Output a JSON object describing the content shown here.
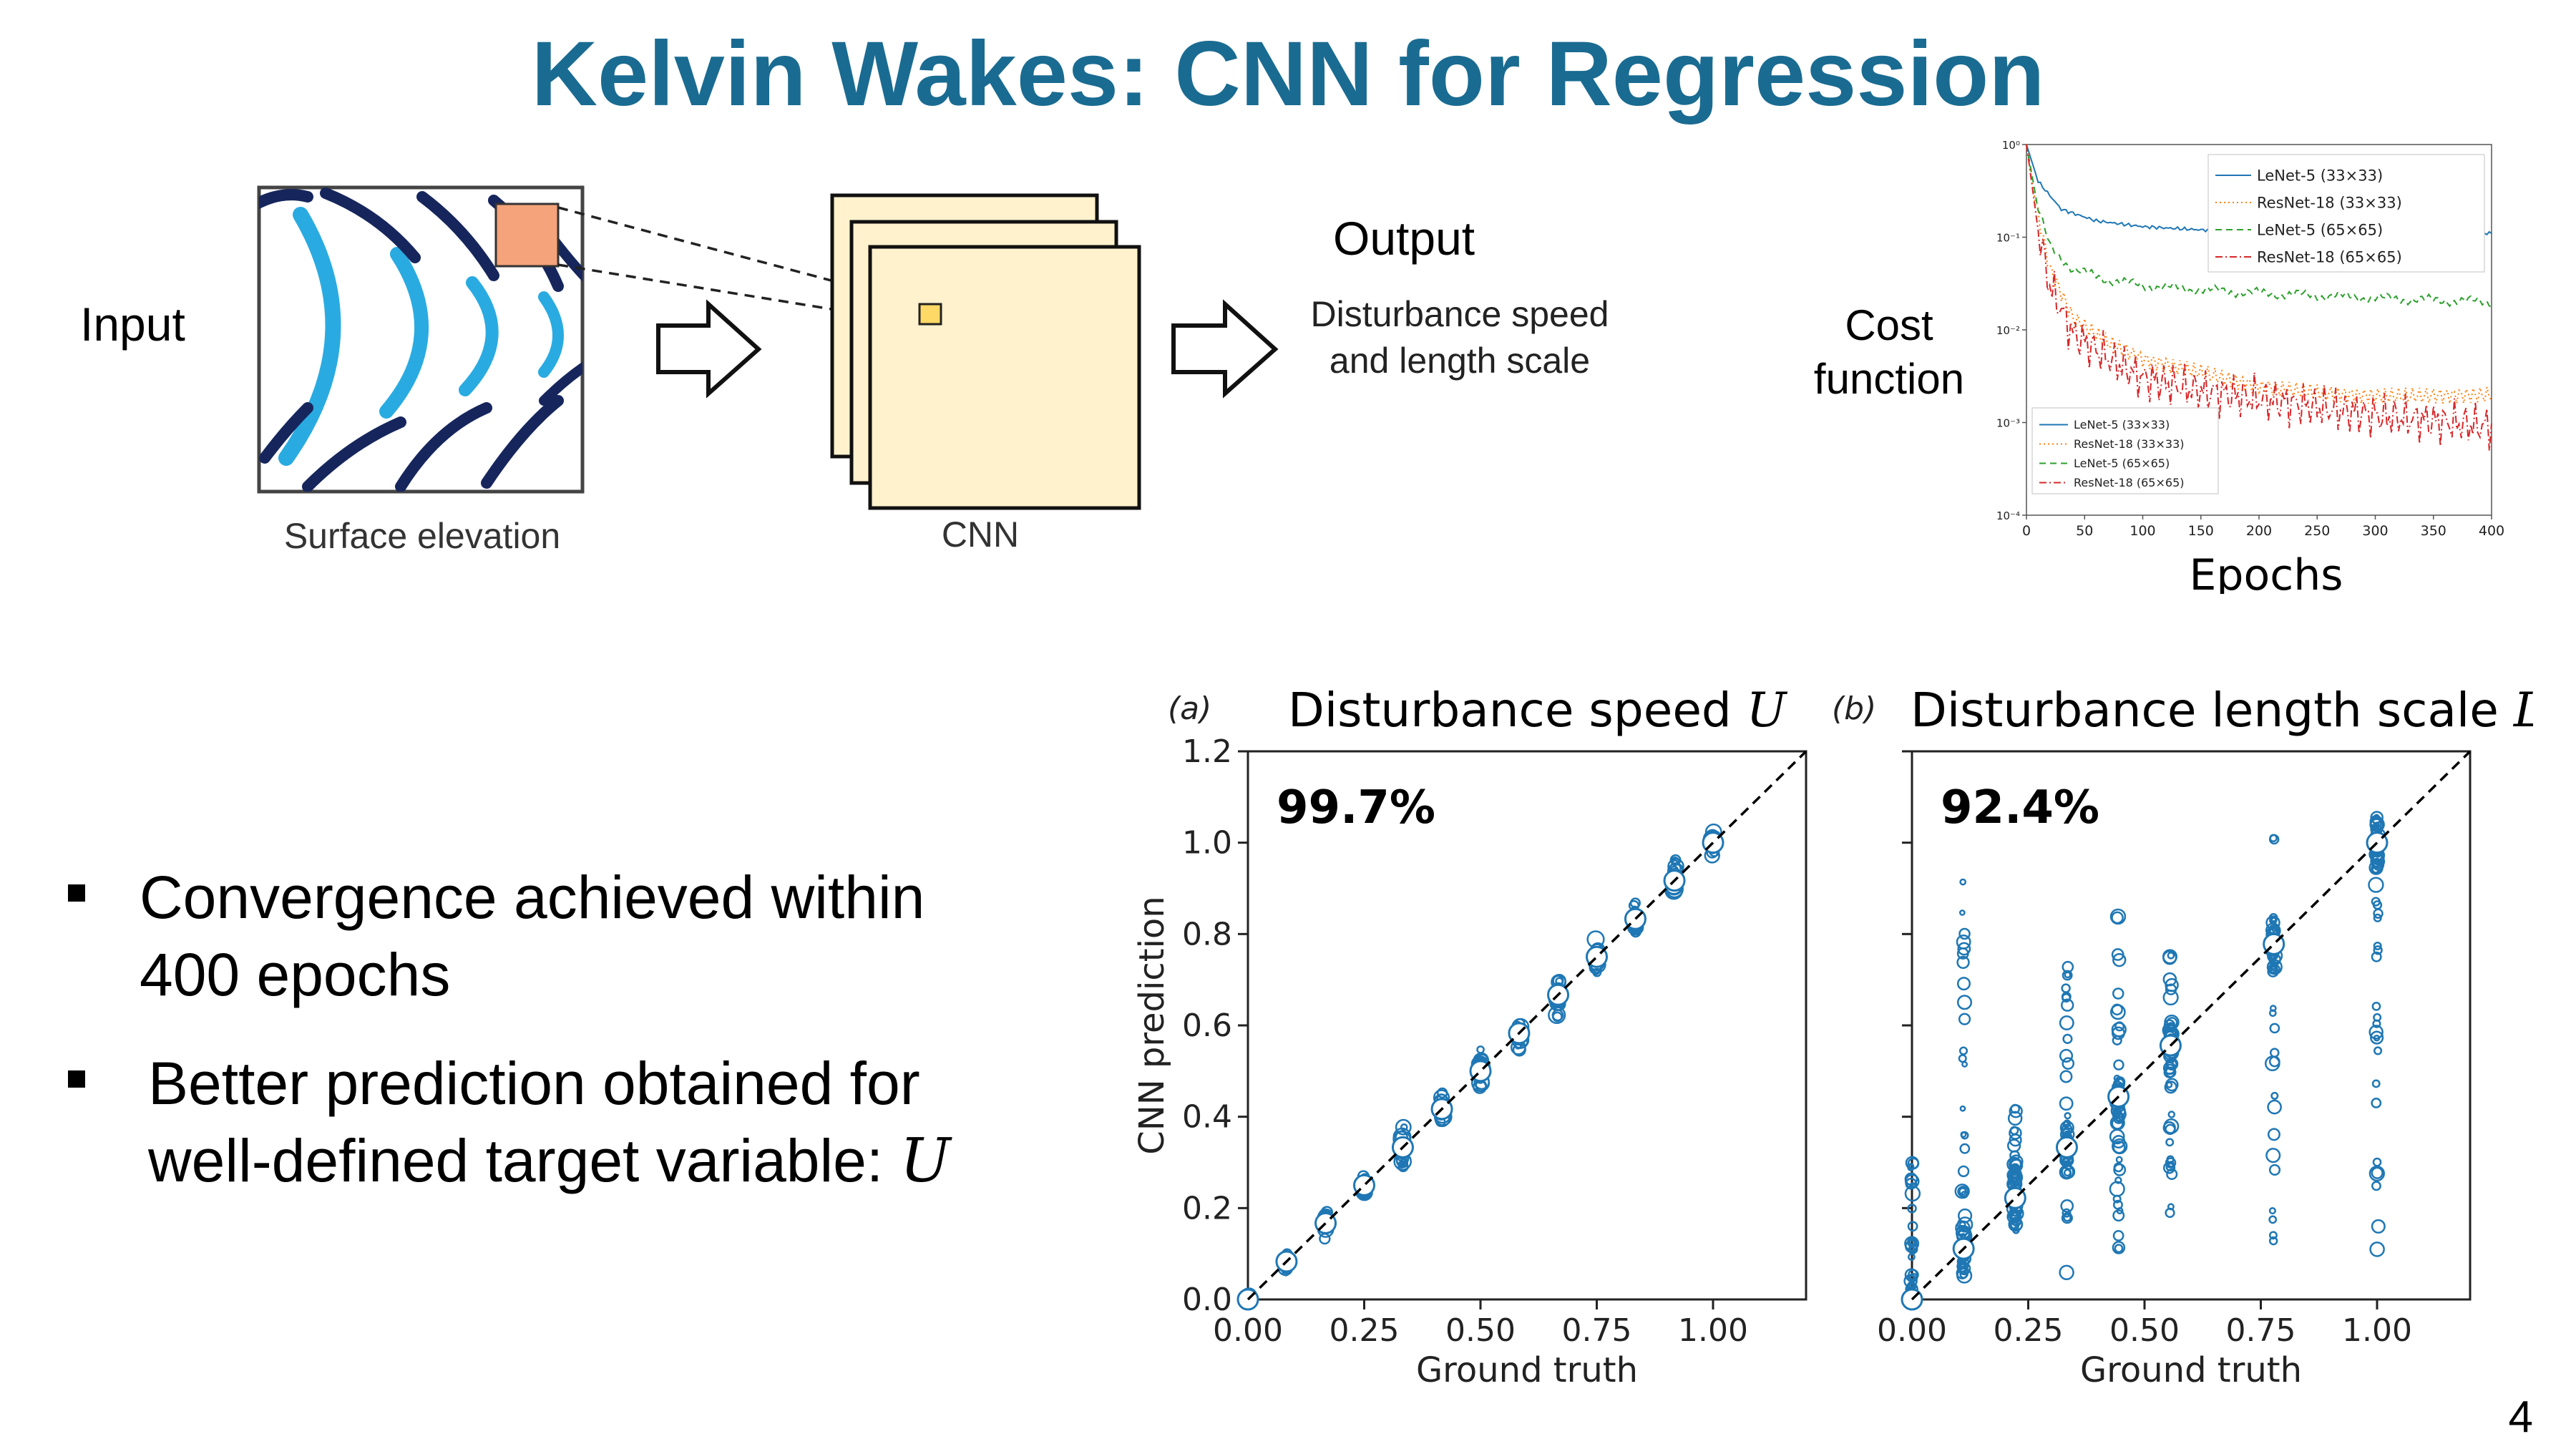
{
  "title": "Kelvin Wakes: CNN for Regression",
  "pipeline": {
    "input_label": "Input",
    "surface_label": "Surface elevation",
    "cnn_label": "CNN",
    "output_label": "Output",
    "output_line1": "Disturbance speed",
    "output_line2": "and length scale",
    "cost_label_line1": "Cost",
    "cost_label_line2": "function",
    "epochs_label": "Epochs"
  },
  "bullets": [
    {
      "line1": "Convergence achieved within",
      "line2": "400 epochs"
    },
    {
      "line1": "Better prediction obtained for",
      "line2": "well-defined target variable: ",
      "math": "U"
    }
  ],
  "page_number": "4",
  "colors": {
    "title": "#1a6b91",
    "scatter": "#1f77b4",
    "wake_dark": "#16265c",
    "wake_light": "#29abe2",
    "cnn_fill": "#fff2cc",
    "patch": "#f4a37a"
  },
  "chart_data": [
    {
      "id": "cost",
      "type": "line",
      "title": "",
      "xlabel": "Epochs",
      "ylabel": "",
      "xlim": [
        0,
        400
      ],
      "ylim_log": [
        0.0001,
        1
      ],
      "log_y": true,
      "xticks": [
        "0",
        "50",
        "100",
        "150",
        "200",
        "250",
        "300",
        "350",
        "400"
      ],
      "yticks": [
        "10⁰",
        "10⁻¹",
        "10⁻²",
        "10⁻³",
        "10⁻⁴"
      ],
      "legend_position": "top-right and bottom-left",
      "series": [
        {
          "name": "LeNet-5 (33×33)",
          "color": "#1f77b4",
          "style": "solid",
          "x": [
            0,
            10,
            30,
            60,
            100,
            150,
            200,
            300,
            400
          ],
          "y": [
            1,
            0.4,
            0.2,
            0.15,
            0.13,
            0.12,
            0.115,
            0.11,
            0.11
          ]
        },
        {
          "name": "ResNet-18 (33×33)",
          "color": "#ff7f0e",
          "style": "dotted",
          "x": [
            0,
            10,
            20,
            40,
            70,
            100,
            150,
            200,
            300,
            400
          ],
          "y": [
            1,
            0.15,
            0.04,
            0.012,
            0.007,
            0.005,
            0.004,
            0.003,
            0.0022,
            0.0018
          ]
        },
        {
          "name": "LeNet-5 (65×65)",
          "color": "#2ca02c",
          "style": "dashed",
          "x": [
            0,
            10,
            20,
            40,
            70,
            100,
            150,
            200,
            300,
            400
          ],
          "y": [
            1,
            0.2,
            0.08,
            0.045,
            0.035,
            0.03,
            0.027,
            0.025,
            0.022,
            0.02
          ]
        },
        {
          "name": "ResNet-18 (65×65)",
          "color": "#d62728",
          "style": "dashdot",
          "x": [
            0,
            10,
            20,
            40,
            70,
            100,
            150,
            200,
            300,
            400
          ],
          "y": [
            1,
            0.12,
            0.03,
            0.009,
            0.005,
            0.003,
            0.0022,
            0.0018,
            0.0012,
            0.0009
          ]
        }
      ]
    },
    {
      "id": "a",
      "type": "scatter",
      "panel_tag": "(a)",
      "title": "Disturbance speed ",
      "title_math": "U",
      "annotation": "99.7%",
      "xlabel": "Ground truth",
      "ylabel": "CNN prediction",
      "xlim": [
        0,
        1.2
      ],
      "ylim": [
        0,
        1.2
      ],
      "xticks": [
        "0.00",
        "0.25",
        "0.50",
        "0.75",
        "1.00"
      ],
      "yticks": [
        "0.0",
        "0.2",
        "0.4",
        "0.6",
        "0.8",
        "1.0",
        "1.2"
      ],
      "ground_truth": [
        0.0,
        0.083,
        0.167,
        0.25,
        0.333,
        0.417,
        0.5,
        0.583,
        0.667,
        0.75,
        0.833,
        0.917,
        1.0
      ],
      "pred_spread": [
        0.01,
        0.025,
        0.04,
        0.025,
        0.06,
        0.05,
        0.05,
        0.04,
        0.06,
        0.05,
        0.04,
        0.05,
        0.03
      ]
    },
    {
      "id": "b",
      "type": "scatter",
      "panel_tag": "(b)",
      "title": "Disturbance length scale ",
      "title_math": "L",
      "annotation": "92.4%",
      "xlabel": "Ground truth",
      "ylabel": "",
      "xlim": [
        0,
        1.2
      ],
      "ylim": [
        0,
        1.2
      ],
      "xticks": [
        "0.00",
        "0.25",
        "0.50",
        "0.75",
        "1.00"
      ],
      "yticks": [],
      "ground_truth": [
        0.0,
        0.111,
        0.222,
        0.333,
        0.444,
        0.556,
        0.778,
        1.0
      ],
      "pred_range": [
        [
          0.0,
          0.3
        ],
        [
          0.0,
          0.92
        ],
        [
          0.15,
          0.43
        ],
        [
          0.0,
          0.78
        ],
        [
          0.1,
          0.86
        ],
        [
          0.1,
          0.79
        ],
        [
          0.1,
          1.02
        ],
        [
          0.1,
          1.03
        ]
      ]
    }
  ]
}
